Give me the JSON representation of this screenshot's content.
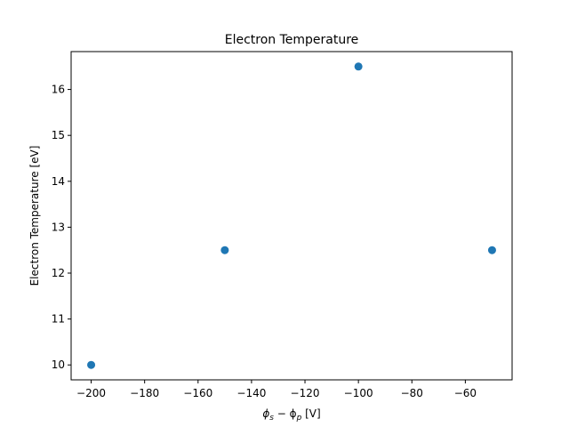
{
  "chart_data": {
    "type": "scatter",
    "title": "Electron Temperature",
    "xlabel_main": "ϕ",
    "xlabel_sub1": "s",
    "xlabel_mid": " − ϕ",
    "xlabel_sub2": "p",
    "xlabel_unit": " [V]",
    "ylabel": "Electron Temperature [eV]",
    "xlim": [
      -207.5,
      -42.5
    ],
    "ylim": [
      9.675,
      16.825
    ],
    "xticks": [
      -200,
      -180,
      -160,
      -140,
      -120,
      -100,
      -80,
      -60
    ],
    "xtick_labels": [
      "−200",
      "−180",
      "−160",
      "−140",
      "−120",
      "−100",
      "−80",
      "−60"
    ],
    "yticks": [
      10,
      11,
      12,
      13,
      14,
      15,
      16
    ],
    "ytick_labels": [
      "10",
      "11",
      "12",
      "13",
      "14",
      "15",
      "16"
    ],
    "x": [
      -200,
      -150,
      -100,
      -50
    ],
    "y": [
      10.0,
      12.5,
      16.5,
      12.5
    ],
    "marker_color": "#1f77b4",
    "grid": false
  }
}
